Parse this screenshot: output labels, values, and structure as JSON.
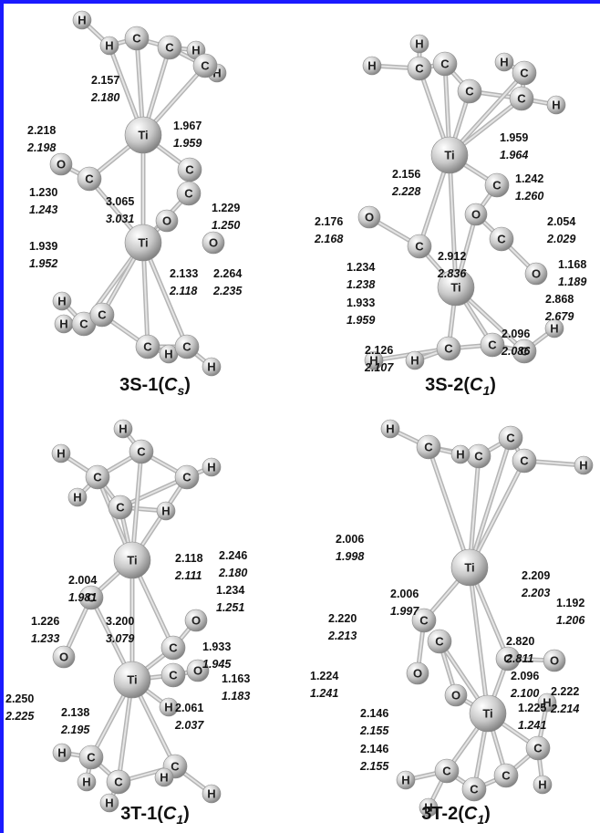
{
  "panels": [
    {
      "caption": {
        "prefix": "3S-1(",
        "symmetry": "C",
        "subscript": "s",
        "suffix": ")"
      },
      "atoms": [
        "H",
        "H",
        "C",
        "C",
        "H",
        "H",
        "C",
        "Ti",
        "O",
        "C",
        "C",
        "C",
        "O",
        "O",
        "Ti",
        "H",
        "H",
        "C",
        "C",
        "C",
        "H",
        "H",
        "C"
      ],
      "distances": [
        [
          "2.157",
          "2.180"
        ],
        [
          "2.218",
          "2.198"
        ],
        [
          "1.967",
          "1.959"
        ],
        [
          "1.230",
          "1.243"
        ],
        [
          "3.065",
          "3.031"
        ],
        [
          "1.229",
          "1.250"
        ],
        [
          "1.939",
          "1.952"
        ],
        [
          "2.133",
          "2.118"
        ],
        [
          "2.264",
          "2.235"
        ]
      ]
    },
    {
      "caption": {
        "prefix": "3S-2(",
        "symmetry": "C",
        "subscript": "1",
        "suffix": ")"
      },
      "atoms": [
        "H",
        "H",
        "C",
        "C",
        "H",
        "C",
        "C",
        "C",
        "H",
        "Ti",
        "O",
        "C",
        "C",
        "O",
        "C",
        "O",
        "Ti",
        "H",
        "H",
        "C",
        "C",
        "C",
        "H"
      ],
      "distances": [
        [
          "1.959",
          "1.964"
        ],
        [
          "2.156",
          "2.228"
        ],
        [
          "1.242",
          "1.260"
        ],
        [
          "2.176",
          "2.168"
        ],
        [
          "2.054",
          "2.029"
        ],
        [
          "1.234",
          "1.238"
        ],
        [
          "2.912",
          "2.836"
        ],
        [
          "1.168",
          "1.189"
        ],
        [
          "1.933",
          "1.959"
        ],
        [
          "2.868",
          "2.679"
        ],
        [
          "2.126",
          "2.107"
        ],
        [
          "2.096",
          "2.086"
        ]
      ]
    },
    {
      "caption": {
        "prefix": "3T-1(",
        "symmetry": "C",
        "subscript": "1",
        "suffix": ")"
      },
      "atoms": [
        "H",
        "H",
        "C",
        "H",
        "C",
        "C",
        "H",
        "C",
        "H",
        "Ti",
        "C",
        "O",
        "C",
        "O",
        "Ti",
        "C",
        "O",
        "H",
        "H",
        "C",
        "H",
        "C",
        "C",
        "H",
        "H",
        "H"
      ],
      "distances": [
        [
          "2.118",
          "2.111"
        ],
        [
          "2.246",
          "2.180"
        ],
        [
          "2.004",
          "1.981"
        ],
        [
          "1.234",
          "1.251"
        ],
        [
          "1.226",
          "1.233"
        ],
        [
          "3.200",
          "3.079"
        ],
        [
          "1.933",
          "1.945"
        ],
        [
          "1.163",
          "1.183"
        ],
        [
          "2.250",
          "2.225"
        ],
        [
          "2.138",
          "2.195"
        ],
        [
          "2.061",
          "2.037"
        ]
      ]
    },
    {
      "caption": {
        "prefix": "3T-2(",
        "symmetry": "C",
        "subscript": "1",
        "suffix": ")"
      },
      "atoms": [
        "H",
        "C",
        "C",
        "H",
        "C",
        "C",
        "H",
        "Ti",
        "C",
        "C",
        "C",
        "O",
        "O",
        "O",
        "Ti",
        "H",
        "C",
        "H",
        "C",
        "H",
        "C",
        "C",
        "H"
      ],
      "distances": [
        [
          "2.006",
          "1.998"
        ],
        [
          "2.209",
          "2.203"
        ],
        [
          "2.006",
          "1.997"
        ],
        [
          "1.192",
          "1.206"
        ],
        [
          "2.220",
          "2.213"
        ],
        [
          "2.820",
          "2.811"
        ],
        [
          "1.224",
          "1.241"
        ],
        [
          "2.096",
          "2.100"
        ],
        [
          "2.222",
          "2.214"
        ],
        [
          "1.225",
          "1.241"
        ],
        [
          "2.146",
          "2.155"
        ],
        [
          "2.146",
          "2.155"
        ]
      ]
    }
  ]
}
